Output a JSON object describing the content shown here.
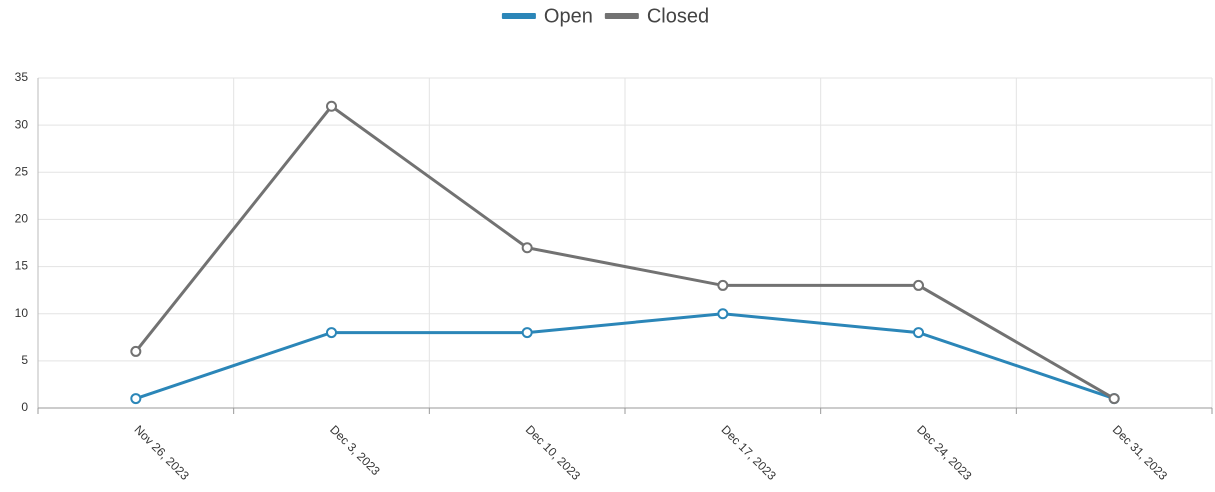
{
  "chart_data": {
    "type": "line",
    "categories": [
      "Nov 26, 2023",
      "Dec 3, 2023",
      "Dec 10, 2023",
      "Dec 17, 2023",
      "Dec 24, 2023",
      "Dec 31, 2023"
    ],
    "series": [
      {
        "name": "Open",
        "color": "#2b86b8",
        "values": [
          1,
          8,
          8,
          10,
          8,
          1
        ]
      },
      {
        "name": "Closed",
        "color": "#727272",
        "values": [
          6,
          32,
          17,
          13,
          13,
          1
        ]
      }
    ],
    "ylim": [
      0,
      35
    ],
    "yticks": [
      0,
      5,
      10,
      15,
      20,
      25,
      30,
      35
    ],
    "grid": true,
    "legend": "top"
  }
}
